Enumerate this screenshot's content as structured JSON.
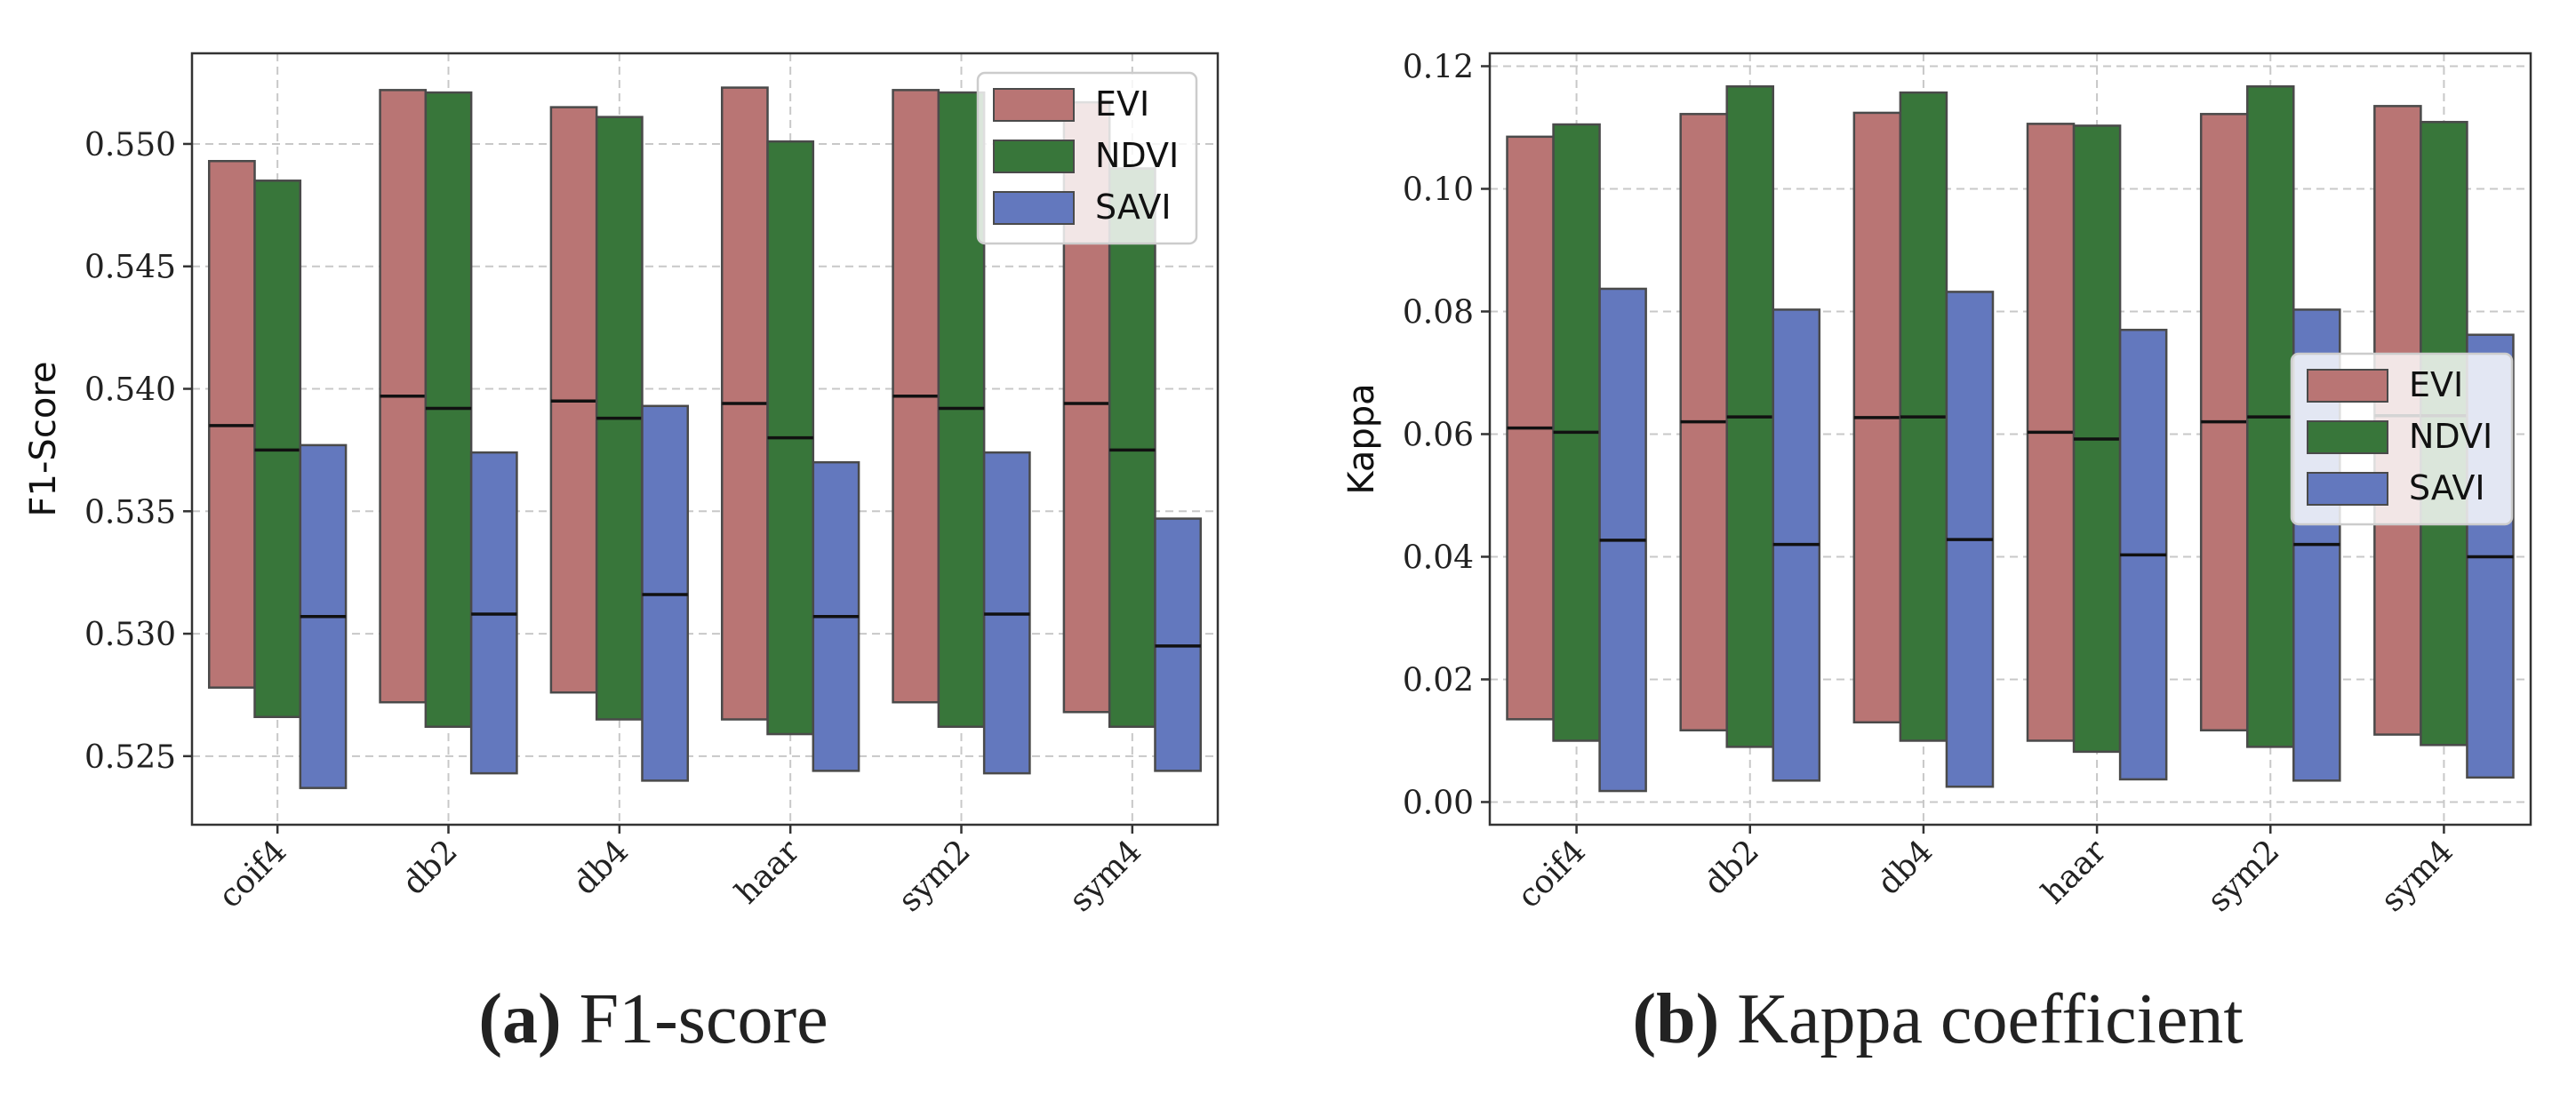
{
  "colors": {
    "EVI": "#b97574",
    "NDVI": "#38763a",
    "SAVI": "#6378be"
  },
  "chart_data": [
    {
      "type": "bar",
      "subtype": "floating-range-with-median",
      "ylabel": "F1-Score",
      "ylim": [
        0.5222,
        0.5537
      ],
      "yticks": [
        0.525,
        0.53,
        0.535,
        0.54,
        0.545,
        0.55
      ],
      "ytick_labels": [
        "0.525",
        "0.530",
        "0.535",
        "0.540",
        "0.545",
        "0.550"
      ],
      "categories": [
        "coif4",
        "db2",
        "db4",
        "haar",
        "sym2",
        "sym4"
      ],
      "grid": true,
      "legend_position": "top-right",
      "series": [
        {
          "name": "EVI",
          "low": [
            0.5278,
            0.5272,
            0.5276,
            0.5265,
            0.5272,
            0.5268
          ],
          "high": [
            0.5493,
            0.5522,
            0.5515,
            0.5523,
            0.5522,
            0.5517
          ],
          "median": [
            0.5385,
            0.5397,
            0.5395,
            0.5394,
            0.5397,
            0.5394
          ]
        },
        {
          "name": "NDVI",
          "low": [
            0.5266,
            0.5262,
            0.5265,
            0.5259,
            0.5262,
            0.5262
          ],
          "high": [
            0.5485,
            0.5521,
            0.5511,
            0.5501,
            0.5521,
            0.549
          ],
          "median": [
            0.5375,
            0.5392,
            0.5388,
            0.538,
            0.5392,
            0.5375
          ]
        },
        {
          "name": "SAVI",
          "low": [
            0.5237,
            0.5243,
            0.524,
            0.5244,
            0.5243,
            0.5244
          ],
          "high": [
            0.5377,
            0.5374,
            0.5393,
            0.537,
            0.5374,
            0.5347
          ],
          "median": [
            0.5307,
            0.5308,
            0.5316,
            0.5307,
            0.5308,
            0.5295
          ]
        }
      ],
      "caption_label": "(a)",
      "caption_text": " F1-score"
    },
    {
      "type": "bar",
      "subtype": "floating-range-with-median",
      "ylabel": "Kappa",
      "ylim": [
        -0.0037,
        0.1221
      ],
      "yticks": [
        0.0,
        0.02,
        0.04,
        0.06,
        0.08,
        0.1,
        0.12
      ],
      "ytick_labels": [
        "0.00",
        "0.02",
        "0.04",
        "0.06",
        "0.08",
        "0.10",
        "0.12"
      ],
      "categories": [
        "coif4",
        "db2",
        "db4",
        "haar",
        "sym2",
        "sym4"
      ],
      "grid": true,
      "legend_position": "center-right",
      "series": [
        {
          "name": "EVI",
          "low": [
            0.0135,
            0.0117,
            0.013,
            0.01,
            0.0117,
            0.011
          ],
          "high": [
            0.1085,
            0.1122,
            0.1124,
            0.1106,
            0.1122,
            0.1135
          ],
          "median": [
            0.061,
            0.062,
            0.0627,
            0.0603,
            0.062,
            0.063
          ]
        },
        {
          "name": "NDVI",
          "low": [
            0.01,
            0.009,
            0.01,
            0.0082,
            0.009,
            0.0093
          ],
          "high": [
            0.1105,
            0.1167,
            0.1157,
            0.1103,
            0.1167,
            0.1109
          ],
          "median": [
            0.0603,
            0.0628,
            0.0628,
            0.0592,
            0.0628,
            0.063
          ]
        },
        {
          "name": "SAVI",
          "low": [
            0.0018,
            0.0035,
            0.0025,
            0.0037,
            0.0035,
            0.004
          ],
          "high": [
            0.0837,
            0.0803,
            0.0832,
            0.077,
            0.0803,
            0.0762
          ],
          "median": [
            0.0427,
            0.042,
            0.0428,
            0.0403,
            0.042,
            0.04
          ]
        }
      ],
      "caption_label": "(b)",
      "caption_text": " Kappa coefficient"
    }
  ]
}
